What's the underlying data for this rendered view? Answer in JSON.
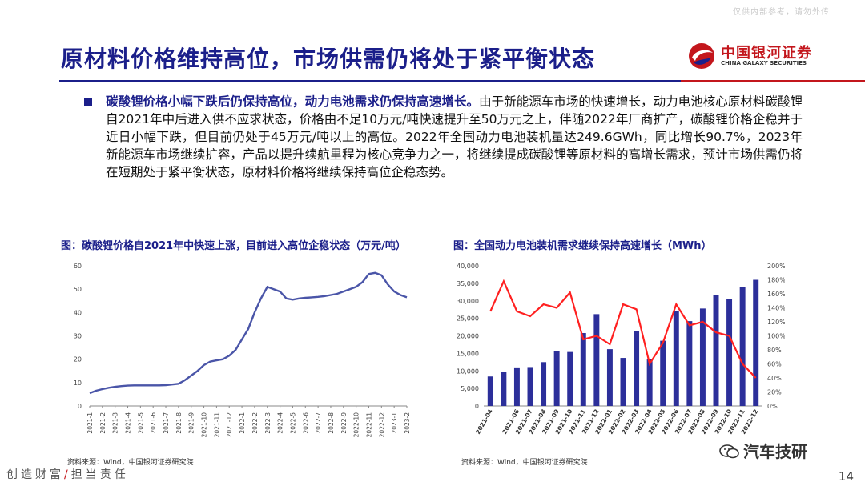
{
  "watermark": "仅供内部参考，请勿外传",
  "title": "原材料价格维持高位，市场供需仍将处于紧平衡状态",
  "logo": {
    "cn": "中国银河证券",
    "en": "CHINA GALAXY SECURITIES"
  },
  "bullet": {
    "lead": "碳酸锂价格小幅下跌后仍保持高位，动力电池需求仍保持高速增长。",
    "body": "由于新能源车市场的快速增长，动力电池核心原材料碳酸锂自2021年中后进入供不应求状态，价格由不足10万元/吨快速提升至50万元之上，伴随2022年厂商扩产，碳酸锂价格企稳并于近日小幅下跌，但目前仍处于45万元/吨以上的高位。2022年全国动力电池装机量达249.6GWh，同比增长90.7%，2023年新能源车市场继续扩容，产品以提升续航里程为核心竞争力之一，将继续提成碳酸锂等原材料的高增长需求，预计市场供需仍将在短期处于紧平衡状态，原材料价格将继续保持高位企稳态势。"
  },
  "chart_left": {
    "caption": "图：碳酸锂价格自2021年中快速上涨，目前进入高位企稳状态（万元/吨）",
    "source": "资料来源：Wind，中国银河证券研究院"
  },
  "chart_right": {
    "caption": "图：全国动力电池装机需求继续保持高速增长（MWh）",
    "source": "资料来源：Wind，中国银河证券研究院"
  },
  "footer": {
    "slogan_a": "创造财富",
    "slash": "/",
    "slogan_b": "担当责任",
    "wechat": "汽车技研",
    "page": "14"
  },
  "colors": {
    "brand_blue": "#1b1f8a",
    "brand_red": "#c3161c",
    "line_blue": "#4a55a8",
    "bar_blue": "#2c2f9a",
    "line_red": "#ff2020"
  },
  "chart_data": [
    {
      "type": "line",
      "title": "",
      "xlabel": "",
      "ylabel": "",
      "ylim": [
        0,
        60
      ],
      "yticks": [
        "0",
        "10",
        "20",
        "30",
        "40",
        "50",
        "60"
      ],
      "xticks": [
        "2021-1",
        "2021-2",
        "2021-3",
        "2021-4",
        "2021-5",
        "2021-6",
        "2021-7",
        "2021-8",
        "2021-9",
        "2021-10",
        "2021-11",
        "2021-12",
        "2022-1",
        "2022-2",
        "2022-3",
        "2022-4",
        "2022-5",
        "2022-6",
        "2022-7",
        "2022-8",
        "2022-9",
        "2022-10",
        "2022-11",
        "2022-12",
        "2023-1",
        "2023-2"
      ],
      "points": [
        [
          0,
          5.5
        ],
        [
          0.5,
          6.5
        ],
        [
          1,
          7.2
        ],
        [
          1.5,
          7.8
        ],
        [
          2,
          8.2
        ],
        [
          2.5,
          8.5
        ],
        [
          3,
          8.7
        ],
        [
          3.5,
          8.8
        ],
        [
          4,
          8.8
        ],
        [
          4.5,
          8.8
        ],
        [
          5,
          8.8
        ],
        [
          5.5,
          8.8
        ],
        [
          6,
          8.9
        ],
        [
          6.5,
          9.2
        ],
        [
          7,
          9.5
        ],
        [
          7.5,
          11
        ],
        [
          8,
          13
        ],
        [
          8.5,
          15
        ],
        [
          9,
          17.5
        ],
        [
          9.5,
          19
        ],
        [
          10,
          19.5
        ],
        [
          10.5,
          20
        ],
        [
          11,
          21.5
        ],
        [
          11.5,
          24
        ],
        [
          12,
          28.5
        ],
        [
          12.5,
          33
        ],
        [
          13,
          40
        ],
        [
          13.5,
          46
        ],
        [
          14,
          51
        ],
        [
          14.5,
          50
        ],
        [
          15,
          49
        ],
        [
          15.5,
          46
        ],
        [
          16,
          45.5
        ],
        [
          16.5,
          46
        ],
        [
          17,
          46.3
        ],
        [
          17.5,
          46.5
        ],
        [
          18,
          46.7
        ],
        [
          18.5,
          47
        ],
        [
          19,
          47.5
        ],
        [
          19.5,
          48
        ],
        [
          20,
          49
        ],
        [
          20.5,
          50
        ],
        [
          21,
          51
        ],
        [
          21.5,
          53
        ],
        [
          22,
          56.5
        ],
        [
          22.5,
          57
        ],
        [
          23,
          56
        ],
        [
          23.5,
          52
        ],
        [
          24,
          49
        ],
        [
          24.5,
          47.5
        ],
        [
          25,
          46.5
        ]
      ]
    },
    {
      "type": "bar",
      "title": "",
      "xlabel": "",
      "ylabel": "",
      "ylim": [
        0,
        40000
      ],
      "y2lim": [
        0,
        200
      ],
      "yticks": [
        "0",
        "5,000",
        "10,000",
        "15,000",
        "20,000",
        "25,000",
        "30,000",
        "35,000",
        "40,000"
      ],
      "y2ticks": [
        "0%",
        "20%",
        "40%",
        "60%",
        "80%",
        "100%",
        "120%",
        "140%",
        "160%",
        "180%",
        "200%"
      ],
      "categories": [
        "2021-04",
        "2021-05",
        "2021-06",
        "2021-07",
        "2021-08",
        "2021-09",
        "2021-10",
        "2021-11",
        "2021-12",
        "2022-01",
        "2022-02",
        "2022-03",
        "2022-04",
        "2022-05",
        "2022-06",
        "2022-07",
        "2022-08",
        "2022-09",
        "2022-10",
        "2022-11",
        "2022-12"
      ],
      "xticks_shown": [
        "2021-04",
        "2021-06",
        "2021-07",
        "2021-08",
        "2021-09",
        "2021-10",
        "2021-11",
        "2021-12",
        "2022-01",
        "2022-02",
        "2022-03",
        "2022-04",
        "2022-05",
        "2022-06",
        "2022-07",
        "2022-08",
        "2022-09",
        "2022-10",
        "2022-11",
        "2022-12"
      ],
      "series": [
        {
          "values": [
            8400,
            9700,
            11000,
            11100,
            12500,
            15700,
            15400,
            20800,
            26200,
            16200,
            13700,
            21300,
            13300,
            18600,
            27000,
            24200,
            27800,
            31600,
            30500,
            34000,
            36000
          ]
        },
        {
          "axis": "right",
          "values": [
            135,
            178,
            135,
            128,
            145,
            140,
            162,
            95,
            100,
            88,
            145,
            138,
            60,
            90,
            145,
            115,
            120,
            105,
            100,
            60,
            40
          ]
        }
      ]
    }
  ]
}
